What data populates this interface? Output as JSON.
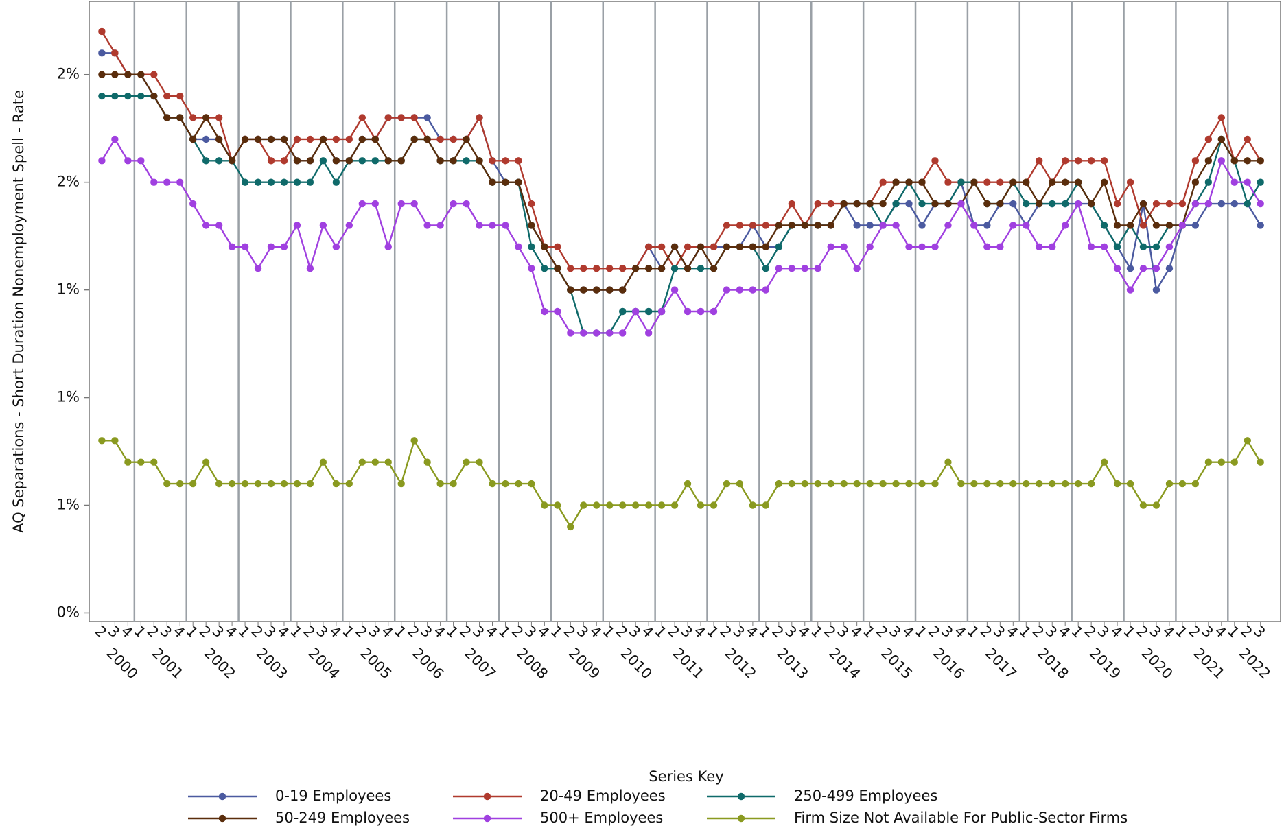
{
  "chart_data": {
    "type": "line",
    "y_label": "AQ Separations - Short Duration Nonemployment Spell - Rate",
    "legend_title": "Series Key",
    "categories": [
      "2",
      "3",
      "4",
      "1",
      "2",
      "3",
      "4",
      "1",
      "2",
      "3",
      "4",
      "1",
      "2",
      "3",
      "4",
      "1",
      "2",
      "3",
      "4",
      "1",
      "2",
      "3",
      "4",
      "1",
      "2",
      "3",
      "4",
      "1",
      "2",
      "3",
      "4",
      "1",
      "2",
      "3",
      "4",
      "1",
      "2",
      "3",
      "4",
      "1",
      "2",
      "3",
      "4",
      "1",
      "2",
      "3",
      "4",
      "1",
      "2",
      "3",
      "4",
      "1",
      "2",
      "3",
      "4",
      "1",
      "2",
      "3",
      "4",
      "1",
      "2",
      "3",
      "4",
      "1",
      "2",
      "3",
      "4",
      "1",
      "2",
      "3",
      "4",
      "1",
      "2",
      "3",
      "4",
      "1",
      "2",
      "3",
      "4",
      "1",
      "2",
      "3",
      "4",
      "1",
      "2",
      "3",
      "4",
      "1",
      "2",
      "3"
    ],
    "years": [
      "2000",
      "2001",
      "2002",
      "2003",
      "2004",
      "2005",
      "2006",
      "2007",
      "2008",
      "2009",
      "2010",
      "2011",
      "2012",
      "2013",
      "2014",
      "2015",
      "2016",
      "2017",
      "2018",
      "2019",
      "2020",
      "2021",
      "2022"
    ],
    "ylim": [
      0.48,
      1.92
    ],
    "yticks": [
      {
        "value": 0.5,
        "label": "0%"
      },
      {
        "value": 0.75,
        "label": "1%"
      },
      {
        "value": 1.0,
        "label": "1%"
      },
      {
        "value": 1.25,
        "label": "1%"
      },
      {
        "value": 1.5,
        "label": "2%"
      },
      {
        "value": 1.75,
        "label": "2%"
      }
    ],
    "series": [
      {
        "name": "0-19 Employees",
        "color": "#4b5aa0",
        "values": [
          1.8,
          1.8,
          1.75,
          1.75,
          1.7,
          1.65,
          1.65,
          1.6,
          1.6,
          1.6,
          1.55,
          1.6,
          1.6,
          1.6,
          1.6,
          1.55,
          1.55,
          1.6,
          1.55,
          1.55,
          1.6,
          1.6,
          1.65,
          1.65,
          1.65,
          1.65,
          1.6,
          1.6,
          1.6,
          1.65,
          1.55,
          1.5,
          1.5,
          1.4,
          1.35,
          1.3,
          1.25,
          1.25,
          1.25,
          1.25,
          1.25,
          1.3,
          1.35,
          1.3,
          1.35,
          1.3,
          1.35,
          1.35,
          1.35,
          1.35,
          1.4,
          1.35,
          1.35,
          1.4,
          1.4,
          1.4,
          1.4,
          1.45,
          1.4,
          1.4,
          1.4,
          1.45,
          1.45,
          1.4,
          1.45,
          1.45,
          1.5,
          1.4,
          1.4,
          1.45,
          1.45,
          1.4,
          1.45,
          1.45,
          1.45,
          1.45,
          1.45,
          1.4,
          1.35,
          1.3,
          1.45,
          1.25,
          1.3,
          1.4,
          1.4,
          1.45,
          1.45,
          1.45,
          1.45,
          1.4
        ]
      },
      {
        "name": "20-49 Employees",
        "color": "#b03a2e",
        "values": [
          1.85,
          1.8,
          1.75,
          1.75,
          1.75,
          1.7,
          1.7,
          1.65,
          1.65,
          1.65,
          1.55,
          1.6,
          1.6,
          1.55,
          1.55,
          1.6,
          1.6,
          1.6,
          1.6,
          1.6,
          1.65,
          1.6,
          1.65,
          1.65,
          1.65,
          1.6,
          1.6,
          1.6,
          1.6,
          1.65,
          1.55,
          1.55,
          1.55,
          1.45,
          1.35,
          1.35,
          1.3,
          1.3,
          1.3,
          1.3,
          1.3,
          1.3,
          1.35,
          1.35,
          1.3,
          1.35,
          1.35,
          1.35,
          1.4,
          1.4,
          1.4,
          1.4,
          1.4,
          1.45,
          1.4,
          1.45,
          1.45,
          1.45,
          1.45,
          1.45,
          1.5,
          1.5,
          1.5,
          1.5,
          1.55,
          1.5,
          1.5,
          1.5,
          1.5,
          1.5,
          1.5,
          1.5,
          1.55,
          1.5,
          1.55,
          1.55,
          1.55,
          1.55,
          1.45,
          1.5,
          1.4,
          1.45,
          1.45,
          1.45,
          1.55,
          1.6,
          1.65,
          1.55,
          1.6,
          1.55
        ]
      },
      {
        "name": "250-499 Employees",
        "color": "#0f6a6a",
        "values": [
          1.7,
          1.7,
          1.7,
          1.7,
          1.7,
          1.65,
          1.65,
          1.6,
          1.55,
          1.55,
          1.55,
          1.5,
          1.5,
          1.5,
          1.5,
          1.5,
          1.5,
          1.55,
          1.5,
          1.55,
          1.55,
          1.55,
          1.55,
          1.55,
          1.6,
          1.6,
          1.55,
          1.55,
          1.55,
          1.55,
          1.5,
          1.5,
          1.5,
          1.35,
          1.3,
          1.3,
          1.25,
          1.15,
          1.15,
          1.15,
          1.2,
          1.2,
          1.2,
          1.2,
          1.3,
          1.3,
          1.3,
          1.3,
          1.35,
          1.35,
          1.35,
          1.3,
          1.35,
          1.4,
          1.4,
          1.4,
          1.4,
          1.45,
          1.45,
          1.45,
          1.4,
          1.45,
          1.5,
          1.45,
          1.45,
          1.45,
          1.5,
          1.5,
          1.45,
          1.45,
          1.5,
          1.45,
          1.45,
          1.45,
          1.45,
          1.5,
          1.45,
          1.4,
          1.35,
          1.4,
          1.35,
          1.35,
          1.4,
          1.4,
          1.45,
          1.5,
          1.6,
          1.55,
          1.45,
          1.5
        ]
      },
      {
        "name": "50-249 Employees",
        "color": "#5a2d0c",
        "values": [
          1.75,
          1.75,
          1.75,
          1.75,
          1.7,
          1.65,
          1.65,
          1.6,
          1.65,
          1.6,
          1.55,
          1.6,
          1.6,
          1.6,
          1.6,
          1.55,
          1.55,
          1.6,
          1.55,
          1.55,
          1.6,
          1.6,
          1.55,
          1.55,
          1.6,
          1.6,
          1.55,
          1.55,
          1.6,
          1.55,
          1.5,
          1.5,
          1.5,
          1.4,
          1.35,
          1.3,
          1.25,
          1.25,
          1.25,
          1.25,
          1.25,
          1.3,
          1.3,
          1.3,
          1.35,
          1.3,
          1.35,
          1.3,
          1.35,
          1.35,
          1.35,
          1.35,
          1.4,
          1.4,
          1.4,
          1.4,
          1.4,
          1.45,
          1.45,
          1.45,
          1.45,
          1.5,
          1.5,
          1.5,
          1.45,
          1.45,
          1.45,
          1.5,
          1.45,
          1.45,
          1.5,
          1.5,
          1.45,
          1.5,
          1.5,
          1.5,
          1.45,
          1.5,
          1.4,
          1.4,
          1.45,
          1.4,
          1.4,
          1.4,
          1.5,
          1.55,
          1.6,
          1.55,
          1.55,
          1.55
        ]
      },
      {
        "name": "500+ Employees",
        "color": "#a040e0",
        "values": [
          1.55,
          1.6,
          1.55,
          1.55,
          1.5,
          1.5,
          1.5,
          1.45,
          1.4,
          1.4,
          1.35,
          1.35,
          1.3,
          1.35,
          1.35,
          1.4,
          1.3,
          1.4,
          1.35,
          1.4,
          1.45,
          1.45,
          1.35,
          1.45,
          1.45,
          1.4,
          1.4,
          1.45,
          1.45,
          1.4,
          1.4,
          1.4,
          1.35,
          1.3,
          1.2,
          1.2,
          1.15,
          1.15,
          1.15,
          1.15,
          1.15,
          1.2,
          1.15,
          1.2,
          1.25,
          1.2,
          1.2,
          1.2,
          1.25,
          1.25,
          1.25,
          1.25,
          1.3,
          1.3,
          1.3,
          1.3,
          1.35,
          1.35,
          1.3,
          1.35,
          1.4,
          1.4,
          1.35,
          1.35,
          1.35,
          1.4,
          1.45,
          1.4,
          1.35,
          1.35,
          1.4,
          1.4,
          1.35,
          1.35,
          1.4,
          1.45,
          1.35,
          1.35,
          1.3,
          1.25,
          1.3,
          1.3,
          1.35,
          1.4,
          1.45,
          1.45,
          1.55,
          1.5,
          1.5,
          1.45
        ]
      },
      {
        "name": "Firm Size Not Available For Public-Sector Firms",
        "color": "#8a9a20",
        "values": [
          0.9,
          0.9,
          0.85,
          0.85,
          0.85,
          0.8,
          0.8,
          0.8,
          0.85,
          0.8,
          0.8,
          0.8,
          0.8,
          0.8,
          0.8,
          0.8,
          0.8,
          0.85,
          0.8,
          0.8,
          0.85,
          0.85,
          0.85,
          0.8,
          0.9,
          0.85,
          0.8,
          0.8,
          0.85,
          0.85,
          0.8,
          0.8,
          0.8,
          0.8,
          0.75,
          0.75,
          0.7,
          0.75,
          0.75,
          0.75,
          0.75,
          0.75,
          0.75,
          0.75,
          0.75,
          0.8,
          0.75,
          0.75,
          0.8,
          0.8,
          0.75,
          0.75,
          0.8,
          0.8,
          0.8,
          0.8,
          0.8,
          0.8,
          0.8,
          0.8,
          0.8,
          0.8,
          0.8,
          0.8,
          0.8,
          0.85,
          0.8,
          0.8,
          0.8,
          0.8,
          0.8,
          0.8,
          0.8,
          0.8,
          0.8,
          0.8,
          0.8,
          0.85,
          0.8,
          0.8,
          0.75,
          0.75,
          0.8,
          0.8,
          0.8,
          0.85,
          0.85,
          0.85,
          0.9,
          0.85
        ]
      }
    ]
  }
}
